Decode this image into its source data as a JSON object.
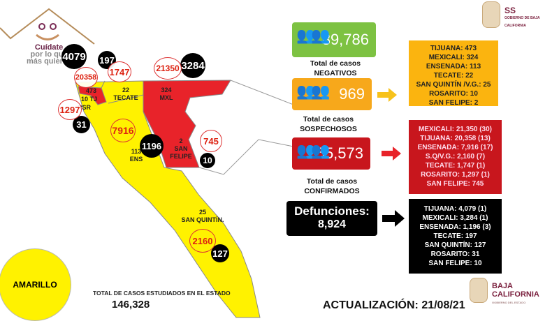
{
  "logo": {
    "tagline": [
      "Cuídate",
      "por lo que",
      "más quieres"
    ]
  },
  "header_logo": {
    "abbr": "SS",
    "subtitle": "GOBIERNO DE BAJA CALIFORNIA"
  },
  "footer_logo": {
    "line1": "BAJA",
    "line2": "CALIFORNIA",
    "line3": "GOBIERNO DEL ESTADO"
  },
  "map": {
    "labels": {
      "tj_count": "473",
      "rsr_count": "10 TJ",
      "rsr": "RSR",
      "tecate_count": "22",
      "tecate": "TECATE",
      "mxl_count": "324",
      "mxl": "MXL",
      "sf_count": "2",
      "sf1": "SAN",
      "sf2": "FELIPE",
      "ens_count": "113",
      "ens": "ENS",
      "sq_count": "25",
      "sq": "SAN QUINTÍN."
    },
    "deaths": {
      "tijuana": "4079",
      "tecate": "197",
      "mexicali": "3284",
      "rosarito": "31",
      "ensenada": "1196",
      "san_felipe": "10",
      "san_quintin": "127"
    },
    "confirmed": {
      "tijuana": "20358",
      "tecate": "1747",
      "mexicali": "21350",
      "rosarito": "1297",
      "ensenada": "7916",
      "san_felipe": "745",
      "san_quintin": "2160"
    },
    "colors": {
      "red": "#e8232a",
      "yellow": "#fff200"
    }
  },
  "semaforo": {
    "label": "AMARILLO",
    "color": "#fff200"
  },
  "total_studied": {
    "label": "TOTAL DE CASOS ESTUDIADOS EN EL ESTADO",
    "value": "146,328"
  },
  "negatives": {
    "value": "89,786",
    "caption1": "Total de casos",
    "caption2": "NEGATIVOS",
    "color": "#7dc242"
  },
  "suspects": {
    "value": "969",
    "caption1": "Total de casos",
    "caption2": "SOSPECHOSOS",
    "color": "#f7a81b"
  },
  "confirmed": {
    "value": "55,573",
    "caption1": "Total de casos",
    "caption2": "CONFIRMADOS",
    "color": "#c8161d"
  },
  "deaths": {
    "label": "Defunciones:",
    "value": "8,924"
  },
  "suspects_list": [
    "TIJUANA: 473",
    "MEXICALI: 324",
    "ENSENADA: 113",
    "TECATE: 22",
    "SAN QUINTÍN /V.G.: 25",
    "ROSARITO: 10",
    "SAN FELIPE: 2"
  ],
  "confirmed_list": [
    "MEXICALI: 21,350 (30)",
    "TIJUANA: 20,358 (13)",
    "ENSENADA: 7,916  (17)",
    "S.Q/V.G.: 2,160 (7)",
    "TECATE: 1,747  (1)",
    "ROSARITO: 1,297  (1)",
    "SAN FELIPE: 745"
  ],
  "deaths_list": [
    "TIJUANA: 4,079 (1)",
    "MEXICALI: 3,284 (1)",
    "ENSENADA: 1,196 (3)",
    "TECATE: 197",
    "SAN QUINTÍN: 127",
    "ROSARITO: 31",
    "SAN FELIPE: 10"
  ],
  "update": "ACTUALIZACIÓN: 21/08/21"
}
